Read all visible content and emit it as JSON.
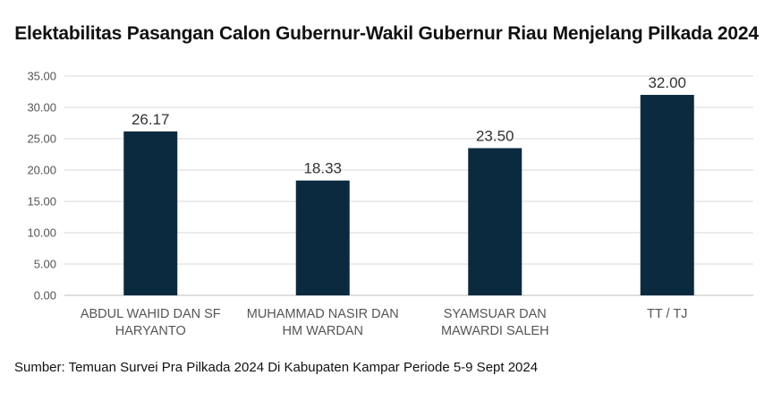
{
  "chart_data": {
    "type": "bar",
    "title": "Elektabilitas Pasangan Calon Gubernur-Wakil Gubernur Riau Menjelang Pilkada 2024",
    "categories": [
      [
        "ABDUL WAHID DAN SF",
        "HARYANTO"
      ],
      [
        "MUHAMMAD NASIR DAN",
        "HM WARDAN"
      ],
      [
        "SYAMSUAR DAN",
        "MAWARDI SALEH"
      ],
      [
        "TT / TJ"
      ]
    ],
    "values": [
      26.17,
      18.33,
      23.5,
      32.0
    ],
    "data_labels": [
      "26.17",
      "18.33",
      "23.50",
      "32.00"
    ],
    "yticks": [
      "0.00",
      "5.00",
      "10.00",
      "15.00",
      "20.00",
      "25.00",
      "30.00",
      "35.00"
    ],
    "ylim": [
      0,
      35
    ],
    "grid": true,
    "bar_color": "#0b2a3f",
    "grid_color": "#d9d9d9",
    "xlabel": "",
    "ylabel": ""
  },
  "footer": {
    "source": "Sumber: Temuan Survei Pra Pilkada 2024 Di Kabupaten Kampar Periode 5-9 Sept 2024"
  }
}
